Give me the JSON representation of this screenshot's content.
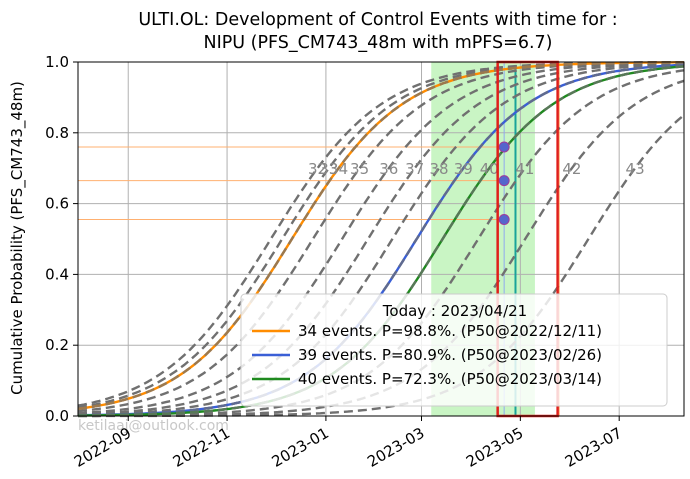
{
  "chart_data": {
    "type": "line",
    "title_line1": "ULTI.OL: Development of Control Events with time for :",
    "title_line2": "NIPU (PFS_CM743_48m with mPFS=6.7)",
    "ylabel": "Cumulative Probability (PFS_CM743_48m)",
    "xlabel": "",
    "xlim": [
      "2022-08-01",
      "2023-08-10"
    ],
    "ylim": [
      0,
      1.0
    ],
    "grid": true,
    "xticks": [
      "2022-09",
      "2022-11",
      "2023-01",
      "2023-03",
      "2023-05",
      "2023-07"
    ],
    "xtick_dates": [
      "2022-09-01",
      "2022-11-01",
      "2023-01-01",
      "2023-03-01",
      "2023-05-01",
      "2023-07-01"
    ],
    "yticks": [
      "0.0",
      "0.2",
      "0.4",
      "0.6",
      "0.8",
      "1.0"
    ],
    "ytick_values": [
      0,
      0.2,
      0.4,
      0.6,
      0.8,
      1.0
    ],
    "curve_labels": [
      "32",
      "33",
      "34",
      "35",
      "36",
      "37",
      "38",
      "39",
      "40",
      "41",
      "42",
      "43"
    ],
    "curve_p50_dates": [
      "2022-11-28",
      "2022-12-05",
      "2022-12-11",
      "2022-12-24",
      "2023-01-11",
      "2023-01-27",
      "2023-02-11",
      "2023-02-26",
      "2023-03-14",
      "2023-04-05",
      "2023-05-04",
      "2023-06-12"
    ],
    "curve_label_y": 0.7,
    "highlighted_series": [
      {
        "events": 34,
        "color": "#ff8c00",
        "p50": "2022-12-11"
      },
      {
        "events": 39,
        "color": "#3a5fd6",
        "p50": "2023-02-26"
      },
      {
        "events": 40,
        "color": "#1f8a1f",
        "p50": "2023-03-14"
      }
    ],
    "today_date": "2023-04-21",
    "today_points": [
      0.76,
      0.665,
      0.555
    ],
    "today_line_color": "#8fa8f0",
    "horizontal_lines": [
      0.76,
      0.665,
      0.555
    ],
    "horizontal_line_color": "#ffb070",
    "green_band": [
      "2023-03-07",
      "2023-05-10"
    ],
    "green_band_color": "#c9f5c4",
    "teal_line_date": "2023-04-28",
    "teal_line_color": "#1aa39a",
    "orange_vline_date": "2023-05-25",
    "red_box": [
      "2023-04-17",
      "2023-05-24"
    ],
    "red_box_color": "#e0201b",
    "dashed_color": "#707070",
    "legend": {
      "title": "Today : 2023/04/21",
      "placement": "lower-right",
      "entries": [
        {
          "label": "34 events. P=98.8%. (P50@2022/12/11)",
          "color": "#ff8c00"
        },
        {
          "label": "39 events. P=80.9%. (P50@2023/02/26)",
          "color": "#3a5fd6"
        },
        {
          "label": "40 events. P=72.3%. (P50@2023/03/14)",
          "color": "#1f8a1f"
        }
      ]
    },
    "watermark": "ketilaaj@outlook.com"
  }
}
